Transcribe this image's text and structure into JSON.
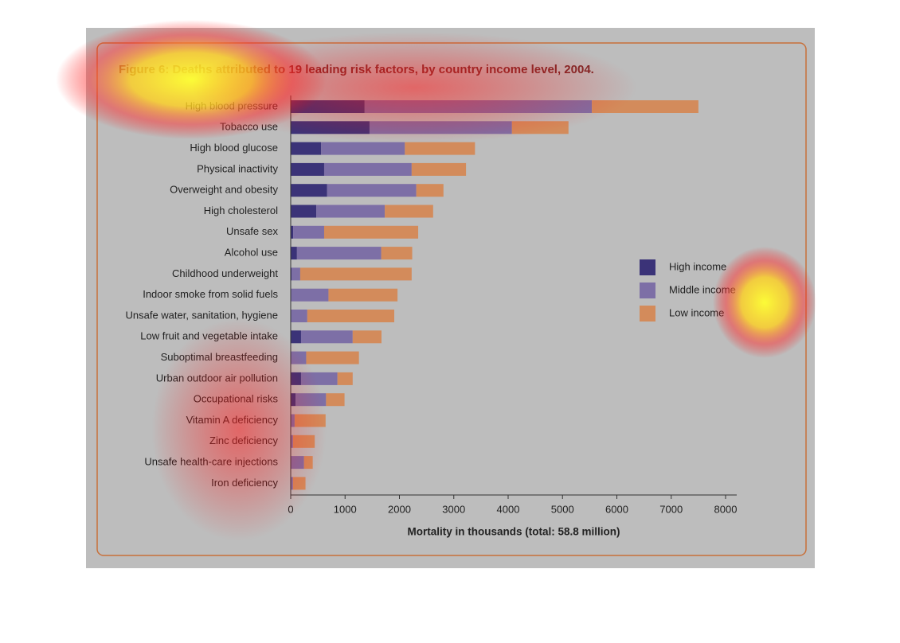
{
  "chart_data": {
    "type": "stacked-barh",
    "title": "Figure 6: Deaths attributed to 19 leading risk factors, by country income level, 2004.",
    "x_label": "Mortality in thousands (total: 58.8 million)",
    "categories": [
      "High blood pressure",
      "Tobacco use",
      "High blood glucose",
      "Physical inactivity",
      "Overweight and obesity",
      "High cholesterol",
      "Unsafe sex",
      "Alcohol use",
      "Childhood underweight",
      "Indoor smoke from solid fuels",
      "Unsafe water, sanitation, hygiene",
      "Low fruit and vegetable intake",
      "Suboptimal breastfeeding",
      "Urban outdoor air pollution",
      "Occupational risks",
      "Vitamin A deficiency",
      "Zinc deficiency",
      "Unsafe health-care injections",
      "Iron deficiency"
    ],
    "series": [
      {
        "name": "High income",
        "color": "#3b3378",
        "values": [
          1360,
          1450,
          560,
          615,
          670,
          470,
          45,
          115,
          15,
          5,
          5,
          190,
          5,
          190,
          90,
          2,
          2,
          5,
          2
        ]
      },
      {
        "name": "Middle income",
        "color": "#7d6fa6",
        "values": [
          4180,
          2620,
          1540,
          1610,
          1640,
          1260,
          570,
          1550,
          160,
          690,
          300,
          950,
          280,
          670,
          560,
          70,
          40,
          240,
          40
        ]
      },
      {
        "name": "Low income",
        "color": "#d38b5b",
        "values": [
          1960,
          1040,
          1290,
          1000,
          500,
          890,
          1730,
          570,
          2050,
          1270,
          1600,
          530,
          970,
          280,
          340,
          570,
          400,
          160,
          230
        ]
      }
    ],
    "xlim": [
      0,
      8000
    ],
    "xticks": [
      0,
      1000,
      2000,
      3000,
      4000,
      5000,
      6000,
      7000,
      8000
    ],
    "legend": "right"
  }
}
